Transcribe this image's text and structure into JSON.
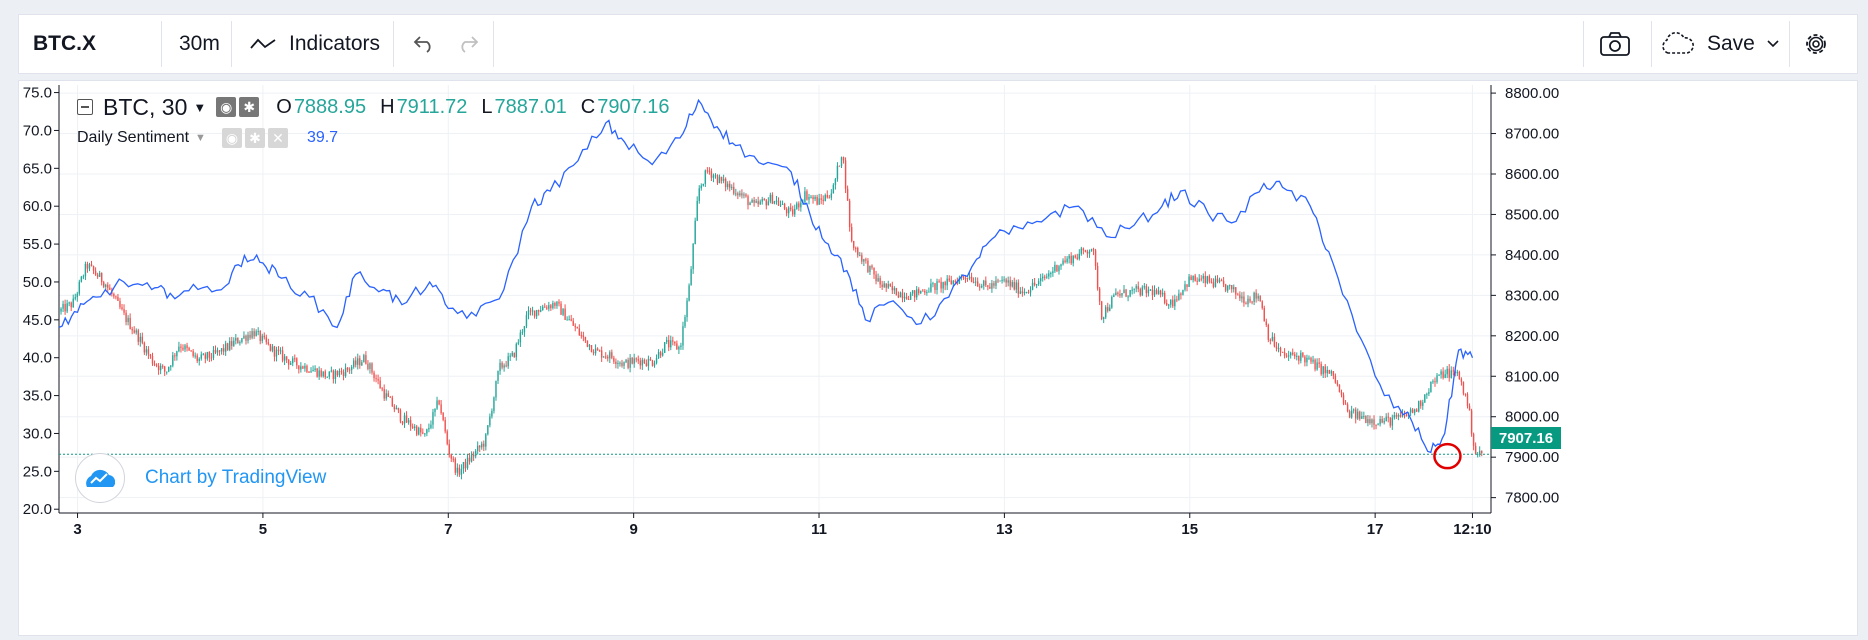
{
  "toolbar": {
    "symbol": "BTC.X",
    "interval": "30m",
    "indicators_label": "Indicators",
    "save_label": "Save"
  },
  "legend": {
    "symbol": "BTC, 30",
    "open_key": "O",
    "open": "7888.95",
    "high_key": "H",
    "high": "7911.72",
    "low_key": "L",
    "low": "7887.01",
    "close_key": "C",
    "close": "7907.16",
    "indicator_name": "Daily Sentiment",
    "indicator_value": "39.7"
  },
  "watermark": {
    "text": "Chart by TradingView"
  },
  "chart_data": {
    "type": "line",
    "title": "",
    "x_tick_labels": [
      "3",
      "5",
      "7",
      "9",
      "11",
      "13",
      "15",
      "17",
      "12:10"
    ],
    "x_ticks": [
      3,
      5,
      7,
      9,
      11,
      13,
      15,
      17,
      18.05
    ],
    "xlim": [
      2.8,
      18.25
    ],
    "left_axis": {
      "label": "",
      "range": [
        19.5,
        76
      ],
      "ticks": [
        20.0,
        25.0,
        30.0,
        35.0,
        40.0,
        45.0,
        50.0,
        55.0,
        60.0,
        65.0,
        70.0,
        75.0
      ]
    },
    "right_axis": {
      "label": "",
      "range": [
        7762,
        8820
      ],
      "ticks": [
        7800.0,
        7900.0,
        8000.0,
        8100.0,
        8200.0,
        8300.0,
        8400.0,
        8500.0,
        8600.0,
        8700.0,
        8800.0
      ]
    },
    "last_price": 7907.16,
    "last_price_label": "7907.16",
    "colors": {
      "up": "#26a69a",
      "down": "#ef5350",
      "sentiment_line": "#2962ff",
      "annotation": "#e00000",
      "price_line": "#089981"
    },
    "series": [
      {
        "kind": "sentiment",
        "axis": "left",
        "x": [
          2.8,
          3.0,
          3.2,
          3.5,
          3.8,
          4.0,
          4.3,
          4.6,
          4.8,
          5.0,
          5.2,
          5.5,
          5.8,
          6.0,
          6.3,
          6.5,
          6.8,
          7.0,
          7.3,
          7.6,
          7.9,
          8.1,
          8.4,
          8.7,
          8.9,
          9.2,
          9.5,
          9.7,
          9.9,
          10.1,
          10.4,
          10.7,
          10.9,
          11.1,
          11.3,
          11.5,
          11.8,
          12.1,
          12.4,
          12.7,
          12.9,
          13.2,
          13.5,
          13.8,
          14.1,
          14.4,
          14.7,
          14.9,
          15.2,
          15.5,
          15.8,
          16.0,
          16.3,
          16.5,
          16.8,
          17.1,
          17.4,
          17.6,
          17.75,
          17.9,
          18.05
        ],
        "values": [
          44.0,
          46.0,
          48.0,
          50.0,
          49.0,
          48.5,
          49.0,
          49.5,
          53.5,
          52.5,
          50.5,
          48.0,
          44.0,
          51.0,
          49.0,
          47.0,
          50.0,
          46.5,
          45.5,
          49.0,
          60.0,
          62.0,
          66.0,
          71.0,
          68.5,
          65.5,
          69.0,
          74.0,
          70.5,
          68.0,
          65.5,
          64.5,
          59.0,
          55.0,
          51.5,
          45.0,
          47.5,
          44.5,
          48.0,
          53.0,
          56.0,
          57.0,
          59.0,
          60.0,
          56.0,
          57.5,
          60.0,
          62.0,
          59.0,
          58.0,
          63.0,
          62.5,
          60.0,
          54.0,
          43.5,
          35.0,
          31.5,
          27.5,
          30.0,
          41.0,
          40.0
        ]
      },
      {
        "kind": "price",
        "axis": "right",
        "name": "BTC",
        "x": [
          2.8,
          2.95,
          3.1,
          3.3,
          3.5,
          3.65,
          3.8,
          3.95,
          4.1,
          4.3,
          4.5,
          4.7,
          4.9,
          5.1,
          5.3,
          5.5,
          5.7,
          5.9,
          6.1,
          6.3,
          6.5,
          6.6,
          6.75,
          6.9,
          7.0,
          7.1,
          7.25,
          7.4,
          7.55,
          7.7,
          7.85,
          8.0,
          8.15,
          8.3,
          8.45,
          8.6,
          8.75,
          8.9,
          9.05,
          9.2,
          9.35,
          9.5,
          9.6,
          9.7,
          9.8,
          9.95,
          10.1,
          10.3,
          10.5,
          10.7,
          10.85,
          11.0,
          11.15,
          11.25,
          11.35,
          11.5,
          11.65,
          11.8,
          12.0,
          12.2,
          12.4,
          12.6,
          12.8,
          13.0,
          13.2,
          13.4,
          13.6,
          13.8,
          13.95,
          14.05,
          14.2,
          14.4,
          14.6,
          14.8,
          15.0,
          15.2,
          15.4,
          15.6,
          15.75,
          15.85,
          16.0,
          16.2,
          16.4,
          16.55,
          16.7,
          16.85,
          17.0,
          17.15,
          17.3,
          17.45,
          17.6,
          17.75,
          17.9,
          18.0,
          18.08,
          18.15
        ],
        "values": [
          8260,
          8280,
          8375,
          8330,
          8250,
          8200,
          8140,
          8110,
          8180,
          8140,
          8155,
          8185,
          8210,
          8165,
          8135,
          8120,
          8100,
          8115,
          8145,
          8060,
          7995,
          7980,
          7950,
          8040,
          7920,
          7860,
          7900,
          7940,
          8120,
          8150,
          8250,
          8270,
          8280,
          8240,
          8195,
          8160,
          8150,
          8130,
          8140,
          8135,
          8180,
          8170,
          8320,
          8560,
          8610,
          8580,
          8560,
          8520,
          8540,
          8500,
          8550,
          8530,
          8560,
          8660,
          8430,
          8380,
          8330,
          8310,
          8300,
          8320,
          8330,
          8350,
          8320,
          8335,
          8310,
          8335,
          8380,
          8400,
          8420,
          8250,
          8300,
          8310,
          8310,
          8280,
          8340,
          8335,
          8320,
          8290,
          8300,
          8200,
          8150,
          8150,
          8120,
          8100,
          8010,
          8000,
          7990,
          7990,
          8000,
          8020,
          8080,
          8110,
          8105,
          8030,
          7910,
          7907
        ]
      }
    ],
    "annotation": {
      "shape": "circle",
      "x": 17.78,
      "value": 27.0
    }
  }
}
